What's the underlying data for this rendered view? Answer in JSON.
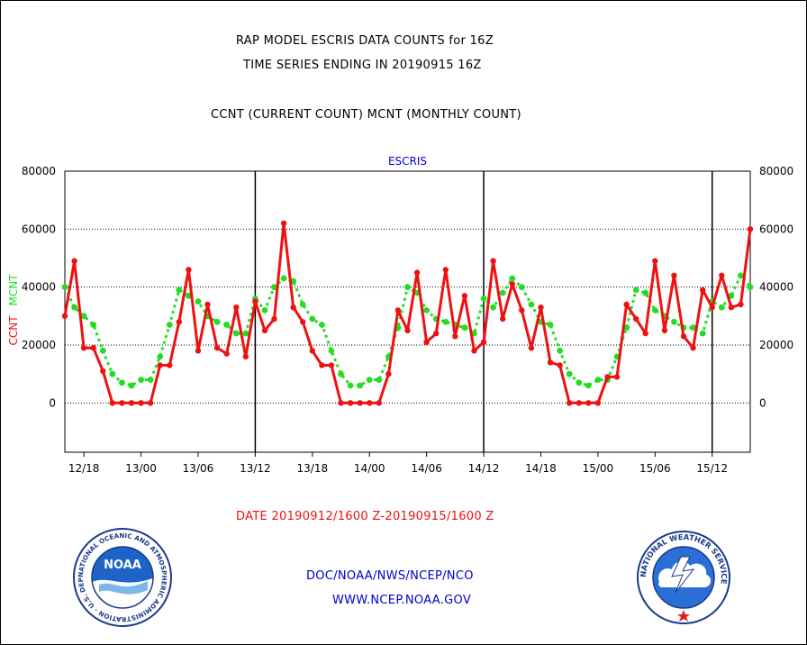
{
  "header": {
    "line1": "RAP MODEL ESCRIS DATA COUNTS for 16Z",
    "line2": "TIME SERIES ENDING IN 20190915 16Z",
    "line3": "CCNT (CURRENT COUNT) MCNT (MONTHLY COUNT)"
  },
  "chart_data": {
    "type": "line",
    "title": "ESCRIS",
    "ylabel_current": "CCNT",
    "ylabel_monthly": "MCNT",
    "ylim": [
      -17000,
      80000
    ],
    "y_ticks": [
      "80000",
      "60000",
      "40000",
      "20000",
      "0"
    ],
    "x_ticks": [
      "12/18",
      "13/00",
      "13/06",
      "13/12",
      "13/18",
      "14/00",
      "14/06",
      "14/12",
      "14/18",
      "15/00",
      "15/06",
      "15/12"
    ],
    "x_ticks_hours_since_12_00": [
      18,
      24,
      30,
      36,
      42,
      48,
      54,
      60,
      66,
      72,
      78,
      84
    ],
    "x_range_hours_since_12_00": [
      16,
      88
    ],
    "day_boundaries_hours_since_12_00": [
      36,
      60,
      84
    ],
    "grid": true,
    "colors": {
      "current": "#ee1111",
      "monthly": "#22dd22",
      "title": "#0000cc",
      "date": "#ee1111",
      "footer": "#0000cc"
    },
    "series": [
      {
        "name": "CCNT",
        "values": [
          30000,
          49000,
          19000,
          19000,
          11000,
          0,
          0,
          0,
          0,
          0,
          13000,
          13000,
          28000,
          46000,
          18000,
          34000,
          19000,
          17000,
          33000,
          16000,
          35000,
          25000,
          29000,
          62000,
          33000,
          28000,
          18000,
          13000,
          13000,
          0,
          0,
          0,
          0,
          0,
          10000,
          32000,
          25000,
          45000,
          21000,
          24000,
          46000,
          23000,
          37000,
          18000,
          21000,
          49000,
          29000,
          41000,
          32000,
          19000,
          33000,
          14000,
          13000,
          0,
          0,
          0,
          0,
          9000,
          9000,
          34000,
          29000,
          24000,
          49000,
          25000,
          44000,
          23000,
          19000,
          39000,
          33000,
          44000,
          33000,
          34000,
          60000
        ]
      },
      {
        "name": "MCNT",
        "values": [
          40000,
          33000,
          30000,
          27000,
          18000,
          10000,
          7000,
          6000,
          8000,
          8000,
          16000,
          27000,
          39000,
          37000,
          35000,
          30000,
          28000,
          27000,
          24000,
          24000,
          36000,
          32000,
          40000,
          43000,
          42000,
          34000,
          29000,
          27000,
          18000,
          10000,
          6000,
          6000,
          8000,
          8000,
          16000,
          26000,
          40000,
          38000,
          32000,
          29000,
          28000,
          27000,
          26000,
          24000,
          36000,
          33000,
          38000,
          43000,
          40000,
          34000,
          28000,
          27000,
          18000,
          10000,
          7000,
          6000,
          8000,
          8000,
          16000,
          26000,
          39000,
          38000,
          32000,
          30000,
          28000,
          26000,
          26000,
          24000,
          35000,
          33000,
          37000,
          44000,
          40000
        ]
      }
    ]
  },
  "footer": {
    "date_range": "DATE 20190912/1600 Z-20190915/1600 Z",
    "org": "DOC/NOAA/NWS/NCEP/NCO",
    "url": "WWW.NCEP.NOAA.GOV"
  },
  "logos": {
    "noaa": {
      "center_text": "NOAA",
      "ring_text": "NATIONAL OCEANIC AND ATMOSPHERIC ADMINISTRATION · U.S. DEPARTMENT OF COMMERCE"
    },
    "nws": {
      "ring_text": "NATIONAL WEATHER SERVICE"
    }
  }
}
